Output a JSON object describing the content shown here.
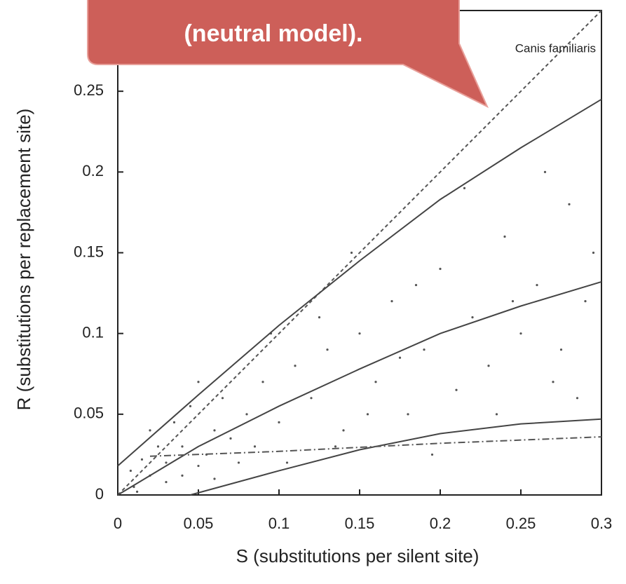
{
  "chart_data": {
    "type": "scatter",
    "xlabel": "S (substitutions per silent site)",
    "ylabel": "R (substitutions per replacement site)",
    "annotations": [
      "(neutral model).",
      "Canis familiaris"
    ],
    "xlim": [
      0,
      0.3
    ],
    "ylim": [
      0,
      0.3
    ],
    "xticks": [
      0,
      0.05,
      0.1,
      0.15,
      0.2,
      0.25,
      0.3
    ],
    "yticks": [
      0,
      0.05,
      0.1,
      0.15,
      0.2,
      0.25
    ],
    "points": {
      "color": "#555",
      "x": [
        0.01,
        0.02,
        0.03,
        0.04,
        0.05,
        0.06,
        0.07,
        0.08,
        0.025,
        0.035,
        0.045,
        0.055,
        0.065,
        0.075,
        0.09,
        0.1,
        0.11,
        0.12,
        0.13,
        0.14,
        0.15,
        0.16,
        0.17,
        0.18,
        0.19,
        0.2,
        0.21,
        0.22,
        0.23,
        0.24,
        0.25,
        0.26,
        0.27,
        0.28,
        0.29,
        0.02,
        0.03,
        0.015,
        0.04,
        0.05,
        0.06,
        0.085,
        0.095,
        0.105,
        0.125,
        0.135,
        0.145,
        0.155,
        0.175,
        0.185,
        0.195,
        0.215,
        0.235,
        0.245,
        0.265,
        0.275,
        0.285,
        0.295,
        0.008,
        0.012
      ],
      "values": [
        0.005,
        0.012,
        0.02,
        0.03,
        0.018,
        0.04,
        0.035,
        0.05,
        0.03,
        0.045,
        0.055,
        0.025,
        0.06,
        0.02,
        0.07,
        0.045,
        0.08,
        0.06,
        0.09,
        0.04,
        0.1,
        0.07,
        0.12,
        0.05,
        0.09,
        0.14,
        0.065,
        0.11,
        0.08,
        0.16,
        0.1,
        0.13,
        0.07,
        0.18,
        0.12,
        0.04,
        0.008,
        0.022,
        0.012,
        0.07,
        0.01,
        0.03,
        0.1,
        0.02,
        0.11,
        0.03,
        0.15,
        0.05,
        0.085,
        0.13,
        0.025,
        0.19,
        0.05,
        0.12,
        0.2,
        0.09,
        0.06,
        0.15,
        0.015,
        0.002
      ]
    },
    "series": [
      {
        "style": "dashed",
        "color": "#555",
        "x": [
          0,
          0.3
        ],
        "values": [
          0,
          0.3
        ]
      },
      {
        "style": "solid",
        "color": "#444",
        "x": [
          0,
          0.05,
          0.1,
          0.15,
          0.2,
          0.25,
          0.3
        ],
        "values": [
          0.018,
          0.062,
          0.105,
          0.145,
          0.183,
          0.215,
          0.245
        ]
      },
      {
        "style": "solid",
        "color": "#444",
        "x": [
          0,
          0.05,
          0.1,
          0.15,
          0.2,
          0.25,
          0.3
        ],
        "values": [
          0,
          0.03,
          0.055,
          0.078,
          0.1,
          0.117,
          0.132
        ]
      },
      {
        "style": "solid",
        "color": "#444",
        "x": [
          0.045,
          0.1,
          0.15,
          0.2,
          0.25,
          0.3
        ],
        "values": [
          0,
          0.015,
          0.028,
          0.038,
          0.044,
          0.047
        ]
      },
      {
        "style": "dashdot",
        "color": "#555",
        "x": [
          0.02,
          0.1,
          0.2,
          0.3
        ],
        "values": [
          0.024,
          0.027,
          0.032,
          0.036
        ]
      }
    ]
  }
}
